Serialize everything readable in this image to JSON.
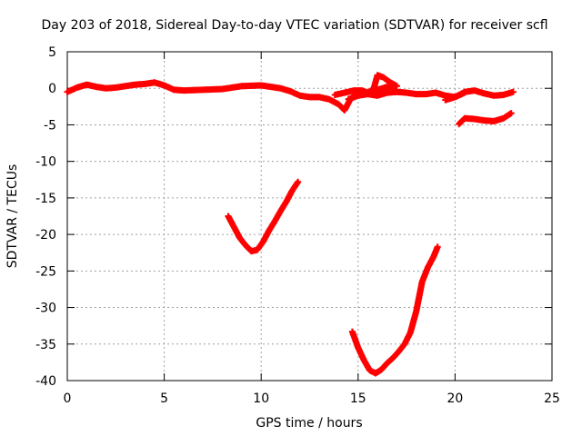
{
  "chart_data": {
    "type": "scatter",
    "title": "Day 203 of 2018, Sidereal Day-to-day VTEC variation (SDTVAR) for receiver scfl",
    "xlabel": "GPS time / hours",
    "ylabel": "SDTVAR / TECUs",
    "xlim": [
      0,
      25
    ],
    "ylim": [
      -40,
      5
    ],
    "xticks": [
      0,
      5,
      10,
      15,
      20,
      25
    ],
    "yticks": [
      5,
      0,
      -5,
      -10,
      -15,
      -20,
      -25,
      -30,
      -35,
      -40
    ],
    "xtick_labels": [
      "0",
      "5",
      "10",
      "15",
      "20",
      "25"
    ],
    "ytick_labels": [
      "5",
      "0",
      "-5",
      "-10",
      "-15",
      "-20",
      "-25",
      "-30",
      "-35",
      "-40"
    ],
    "grid": true,
    "legend": "none",
    "marker": "plus",
    "color": "#ff0000",
    "series": [
      {
        "x": [
          0,
          0.5,
          1.0,
          1.5,
          2.0,
          2.5,
          3.0,
          3.5,
          4.0,
          4.5,
          5.0,
          5.5,
          6.0,
          7.0,
          8.0,
          9.0,
          10.0,
          11.0,
          11.5,
          12.0,
          12.5,
          13.0,
          13.5,
          14.0,
          14.3,
          14.6,
          15.0,
          15.5,
          16.0,
          16.5,
          17.0,
          17.5,
          18.0,
          18.5,
          19.0,
          19.5,
          20.0,
          20.5,
          21.0,
          21.5,
          22.0,
          22.5,
          23.0
        ],
        "y": [
          -0.5,
          0.1,
          0.5,
          0.2,
          0.0,
          0.1,
          0.3,
          0.5,
          0.6,
          0.8,
          0.4,
          -0.2,
          -0.3,
          -0.2,
          -0.1,
          0.3,
          0.4,
          0.0,
          -0.4,
          -1.0,
          -1.2,
          -1.2,
          -1.5,
          -2.2,
          -3.0,
          -1.5,
          -0.6,
          -0.8,
          -1.0,
          -0.6,
          -0.5,
          -0.6,
          -0.8,
          -0.8,
          -0.6,
          -1.0,
          -1.2,
          -0.5,
          -0.3,
          -0.7,
          -1.0,
          -0.9,
          -0.5
        ]
      },
      {
        "x": [
          13.8,
          14.3,
          14.8,
          15.2,
          15.5,
          15.8,
          16.0,
          16.3,
          16.6,
          17.0
        ],
        "y": [
          -0.9,
          -0.6,
          -0.3,
          -0.3,
          -0.6,
          -0.1,
          1.8,
          1.5,
          0.9,
          0.3
        ]
      },
      {
        "x": [
          14.5,
          15.0,
          15.5,
          16.0,
          16.5,
          17.0
        ],
        "y": [
          -1.5,
          -1.0,
          -0.8,
          -0.2,
          0.2,
          -0.3
        ]
      },
      {
        "x": [
          19.5,
          20.0,
          20.5
        ],
        "y": [
          -1.6,
          -1.2,
          -0.6
        ]
      },
      {
        "x": [
          20.2,
          20.5,
          21.0,
          21.5,
          22.0,
          22.5,
          22.9
        ],
        "y": [
          -4.9,
          -4.1,
          -4.2,
          -4.4,
          -4.5,
          -4.1,
          -3.4
        ]
      },
      {
        "x": [
          8.3,
          8.6,
          8.9,
          9.2,
          9.5,
          9.8,
          10.1,
          10.4,
          10.7,
          11.0,
          11.3,
          11.6,
          11.9
        ],
        "y": [
          -17.5,
          -19.0,
          -20.5,
          -21.5,
          -22.3,
          -22.1,
          -21.0,
          -19.5,
          -18.2,
          -16.8,
          -15.5,
          -14.0,
          -12.8
        ]
      },
      {
        "x": [
          14.7,
          15.0,
          15.3,
          15.6,
          15.9,
          16.2,
          16.5,
          16.8,
          17.1,
          17.4,
          17.7,
          18.0,
          18.3,
          18.6,
          18.9,
          19.1
        ],
        "y": [
          -33.3,
          -35.5,
          -37.2,
          -38.6,
          -39.0,
          -38.5,
          -37.6,
          -36.9,
          -36.0,
          -35.0,
          -33.4,
          -30.5,
          -26.5,
          -24.5,
          -23.0,
          -21.7
        ]
      }
    ]
  }
}
